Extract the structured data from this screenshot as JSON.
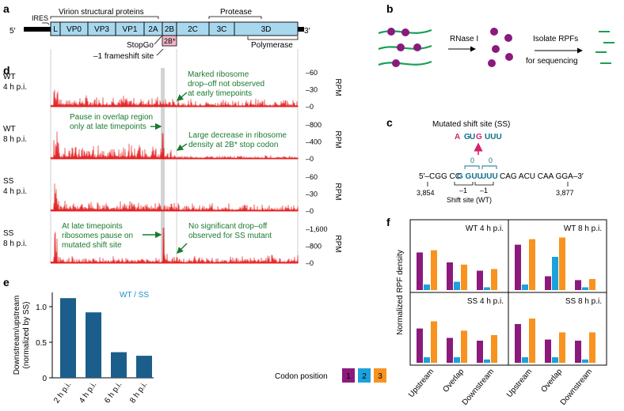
{
  "colors": {
    "trace": "#e31a1c",
    "annotation": "#1a7a2e",
    "gene_fill": "#a9d8ee",
    "frameshift_fill": "#f4b6c8",
    "pos1": "#8b1a7c",
    "pos2": "#1ba1dc",
    "pos3": "#f7931e",
    "bar_e": "#1b5e8c",
    "ss_magenta": "#d6226b",
    "teal": "#0e6f8a"
  },
  "panels": {
    "a": "a",
    "b": "b",
    "c": "c",
    "d": "d",
    "e": "e",
    "f": "f"
  },
  "panel_a": {
    "five_prime": "5′",
    "three_prime": "3′",
    "ires": "IRES",
    "virion_label": "Virion structural proteins",
    "protease_label": "Protease",
    "polymerase_label": "Polymerase",
    "stopgo": "StopGo",
    "frameshift_site": "–1 frameshift site",
    "segments": [
      "L",
      "VP0",
      "VP3",
      "VP1",
      "2A",
      "2B",
      "2C",
      "3C",
      "3D"
    ],
    "frameshift_product": "2B*"
  },
  "panel_b": {
    "rnase": "RNase I",
    "isolate": "Isolate RPFs",
    "sequencing": "for sequencing"
  },
  "panel_c": {
    "title": "Mutated shift site (SS)",
    "mut_A": "A",
    "mut_GUG_G1": "G",
    "mut_GUG_U": "U",
    "mut_GUG_G2": "G",
    "mut_UUU": "UUU",
    "seq_left": "5′–CGG CC",
    "seq_GUU": "G GUU",
    "seq_UUU": "UUU",
    "seq_right": "CAG ACU CAA GGA–3′",
    "zero1": "0",
    "zero2": "0",
    "minus1a": "–1",
    "minus1b": "–1",
    "pos_left": "3,854",
    "pos_right": "3,877",
    "shift_wt": "Shift site (WT)"
  },
  "panel_d": {
    "unit": "RPM",
    "tracks": [
      {
        "sample": "WT",
        "time": "4 h p.i.",
        "ticks": [
          "–60",
          "–30",
          "–0"
        ],
        "ymax": 60
      },
      {
        "sample": "WT",
        "time": "8 h p.i.",
        "ticks": [
          "–800",
          "–400",
          "–0"
        ],
        "ymax": 800
      },
      {
        "sample": "SS",
        "time": "4 h p.i.",
        "ticks": [
          "–60",
          "–30",
          "–0"
        ],
        "ymax": 60
      },
      {
        "sample": "SS",
        "time": "8 h p.i.",
        "ticks": [
          "–1,600",
          "–800",
          "–0"
        ],
        "ymax": 1600
      }
    ],
    "annotations": {
      "a1_l1": "Marked ribosome",
      "a1_l2": "drop–off not observed",
      "a1_l3": "at early timepoints",
      "a2_l1": "Pause in overlap region",
      "a2_l2": "only at late timepoints",
      "a3_l1": "Large decrease in ribosome",
      "a3_l2": "density at 2B* stop codon",
      "a4_l1": "At late timepoints",
      "a4_l2": "ribosomes pause on",
      "a4_l3": "mutated shift site",
      "a5_l1": "No significant drop–off",
      "a5_l2": "observed for SS mutant"
    }
  },
  "chart_data": [
    {
      "type": "bar",
      "panel": "e",
      "title": "",
      "legend": "WT / SS",
      "ylabel": "Downstream/upstream (normalized by SS)",
      "categories": [
        "2 h p.i.",
        "4 h p.i.",
        "6 h p.i.",
        "8 h p.i."
      ],
      "values": [
        1.12,
        0.92,
        0.36,
        0.31
      ],
      "ylim": [
        0,
        1.2
      ],
      "yticks": [
        "0",
        "0.5",
        "1.0"
      ]
    },
    {
      "type": "bar",
      "panel": "f",
      "ylabel": "Normalized RPF density",
      "legend_title": "Codon position",
      "legend": [
        "1",
        "2",
        "3"
      ],
      "categories": [
        "Upstream",
        "Overlap",
        "Downstream"
      ],
      "ylim": [
        0,
        1
      ],
      "subplots": [
        {
          "title": "WT 4 h p.i.",
          "series": [
            {
              "name": "1",
              "values": [
                0.68,
                0.5,
                0.35
              ]
            },
            {
              "name": "2",
              "values": [
                0.1,
                0.15,
                0.05
              ]
            },
            {
              "name": "3",
              "values": [
                0.72,
                0.46,
                0.38
              ]
            }
          ]
        },
        {
          "title": "WT 8 h p.i.",
          "series": [
            {
              "name": "1",
              "values": [
                0.82,
                0.25,
                0.18
              ]
            },
            {
              "name": "2",
              "values": [
                0.1,
                0.6,
                0.05
              ]
            },
            {
              "name": "3",
              "values": [
                0.92,
                0.95,
                0.2
              ]
            }
          ]
        },
        {
          "title": "SS 4 h p.i.",
          "series": [
            {
              "name": "1",
              "values": [
                0.62,
                0.45,
                0.4
              ]
            },
            {
              "name": "2",
              "values": [
                0.1,
                0.1,
                0.06
              ]
            },
            {
              "name": "3",
              "values": [
                0.75,
                0.58,
                0.5
              ]
            }
          ]
        },
        {
          "title": "SS 8 h p.i.",
          "series": [
            {
              "name": "1",
              "values": [
                0.7,
                0.42,
                0.4
              ]
            },
            {
              "name": "2",
              "values": [
                0.1,
                0.1,
                0.06
              ]
            },
            {
              "name": "3",
              "values": [
                0.8,
                0.55,
                0.55
              ]
            }
          ]
        }
      ]
    }
  ]
}
